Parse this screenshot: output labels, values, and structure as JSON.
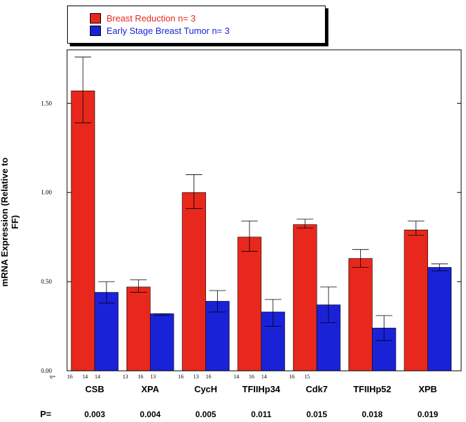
{
  "chart_data": {
    "type": "bar",
    "ylabel": "mRNA Expression (Relative to FF)",
    "ylim": [
      0,
      1.8
    ],
    "yticks": [
      "0.00",
      "0.50",
      "1.00",
      "1.50"
    ],
    "categories": [
      "CSB",
      "XPA",
      "CycH",
      "TFIIHp34",
      "Cdk7",
      "TFIIHp52",
      "XPB"
    ],
    "series": [
      {
        "name": "Breast Reduction n= 3",
        "color": "#e8281c",
        "values": [
          1.57,
          0.47,
          1.0,
          0.75,
          0.82,
          0.63,
          0.79
        ],
        "err_low": [
          1.39,
          0.44,
          0.91,
          0.67,
          0.8,
          0.58,
          0.76
        ],
        "err_high": [
          1.76,
          0.51,
          1.1,
          0.84,
          0.85,
          0.68,
          0.84
        ]
      },
      {
        "name": "Early Stage Breast Tumor n= 3",
        "color": "#1a22d8",
        "values": [
          0.44,
          0.32,
          0.39,
          0.33,
          0.37,
          0.24,
          0.58
        ],
        "err_low": [
          0.38,
          0.31,
          0.33,
          0.25,
          0.27,
          0.17,
          0.56
        ],
        "err_high": [
          0.5,
          0.32,
          0.45,
          0.4,
          0.47,
          0.31,
          0.6
        ]
      }
    ],
    "n_label": "n=",
    "n_values": [
      [
        "16",
        "14",
        "14"
      ],
      [
        "13",
        "16",
        "13"
      ],
      [
        "16",
        "13",
        "16"
      ],
      [
        "14",
        "16",
        "14"
      ],
      [
        "16",
        "15"
      ],
      [],
      []
    ],
    "p_label": "P=",
    "p_values": [
      "0.003",
      "0.004",
      "0.005",
      "0.011",
      "0.015",
      "0.018",
      "0.019"
    ]
  }
}
